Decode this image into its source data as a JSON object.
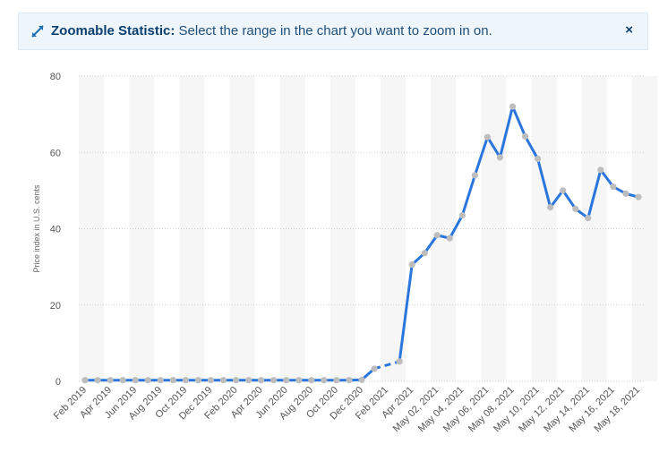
{
  "banner": {
    "title": "Zoomable Statistic:",
    "text": "Select the range in the chart you want to zoom in on.",
    "close_symbol": "×",
    "icon": "expand-arrows-icon"
  },
  "chart_data": {
    "type": "line",
    "title": "",
    "xlabel": "",
    "ylabel": "Price index in U.S. cents",
    "ylim": [
      0,
      80
    ],
    "yticks": [
      0,
      20,
      40,
      60,
      80
    ],
    "grid": "horizontal-dotted",
    "colors": {
      "line": "#2a76dd",
      "marker": "#bdbdbd",
      "band": "#f6f6f6"
    },
    "tick_labels": [
      "Feb 2019",
      "Apr 2019",
      "Jun 2019",
      "Aug 2019",
      "Oct 2019",
      "Dec 2019",
      "Feb 2020",
      "Apr 2020",
      "Jun 2020",
      "Aug 2020",
      "Oct 2020",
      "Dec 2020",
      "Feb 2021",
      "Apr 2021",
      "May 02, 2021",
      "May 04, 2021",
      "May 06, 2021",
      "May 08, 2021",
      "May 10, 2021",
      "May 12, 2021",
      "May 14, 2021",
      "May 16, 2021",
      "May 18, 2021"
    ],
    "categories": [
      "Feb 2019",
      "Mar 2019",
      "Apr 2019",
      "May 2019",
      "Jun 2019",
      "Jul 2019",
      "Aug 2019",
      "Sep 2019",
      "Oct 2019",
      "Nov 2019",
      "Dec 2019",
      "Jan 2020",
      "Feb 2020",
      "Mar 2020",
      "Apr 2020",
      "May 2020",
      "Jun 2020",
      "Jul 2020",
      "Aug 2020",
      "Sep 2020",
      "Oct 2020",
      "Nov 2020",
      "Dec 2020",
      "Jan 2021",
      "Feb 2021",
      "Mar 2021",
      "Apr 2021",
      "May 01, 2021",
      "May 02, 2021",
      "May 03, 2021",
      "May 04, 2021",
      "May 05, 2021",
      "May 06, 2021",
      "May 07, 2021",
      "May 08, 2021",
      "May 09, 2021",
      "May 10, 2021",
      "May 11, 2021",
      "May 12, 2021",
      "May 13, 2021",
      "May 14, 2021",
      "May 15, 2021",
      "May 16, 2021",
      "May 17, 2021",
      "May 18, 2021"
    ],
    "series": [
      {
        "values": [
          0.3,
          0.3,
          0.3,
          0.3,
          0.3,
          0.3,
          0.3,
          0.3,
          0.3,
          0.3,
          0.3,
          0.3,
          0.3,
          0.3,
          0.3,
          0.3,
          0.3,
          0.3,
          0.3,
          0.3,
          0.3,
          0.3,
          0.4,
          3.3,
          null,
          5.2,
          30.6,
          33.6,
          38.3,
          37.5,
          43.5,
          54.0,
          64.0,
          58.7,
          72.0,
          64.2,
          58.3,
          45.6,
          50.0,
          45.2,
          42.8,
          55.4,
          51.0,
          49.2,
          48.3
        ]
      }
    ]
  }
}
